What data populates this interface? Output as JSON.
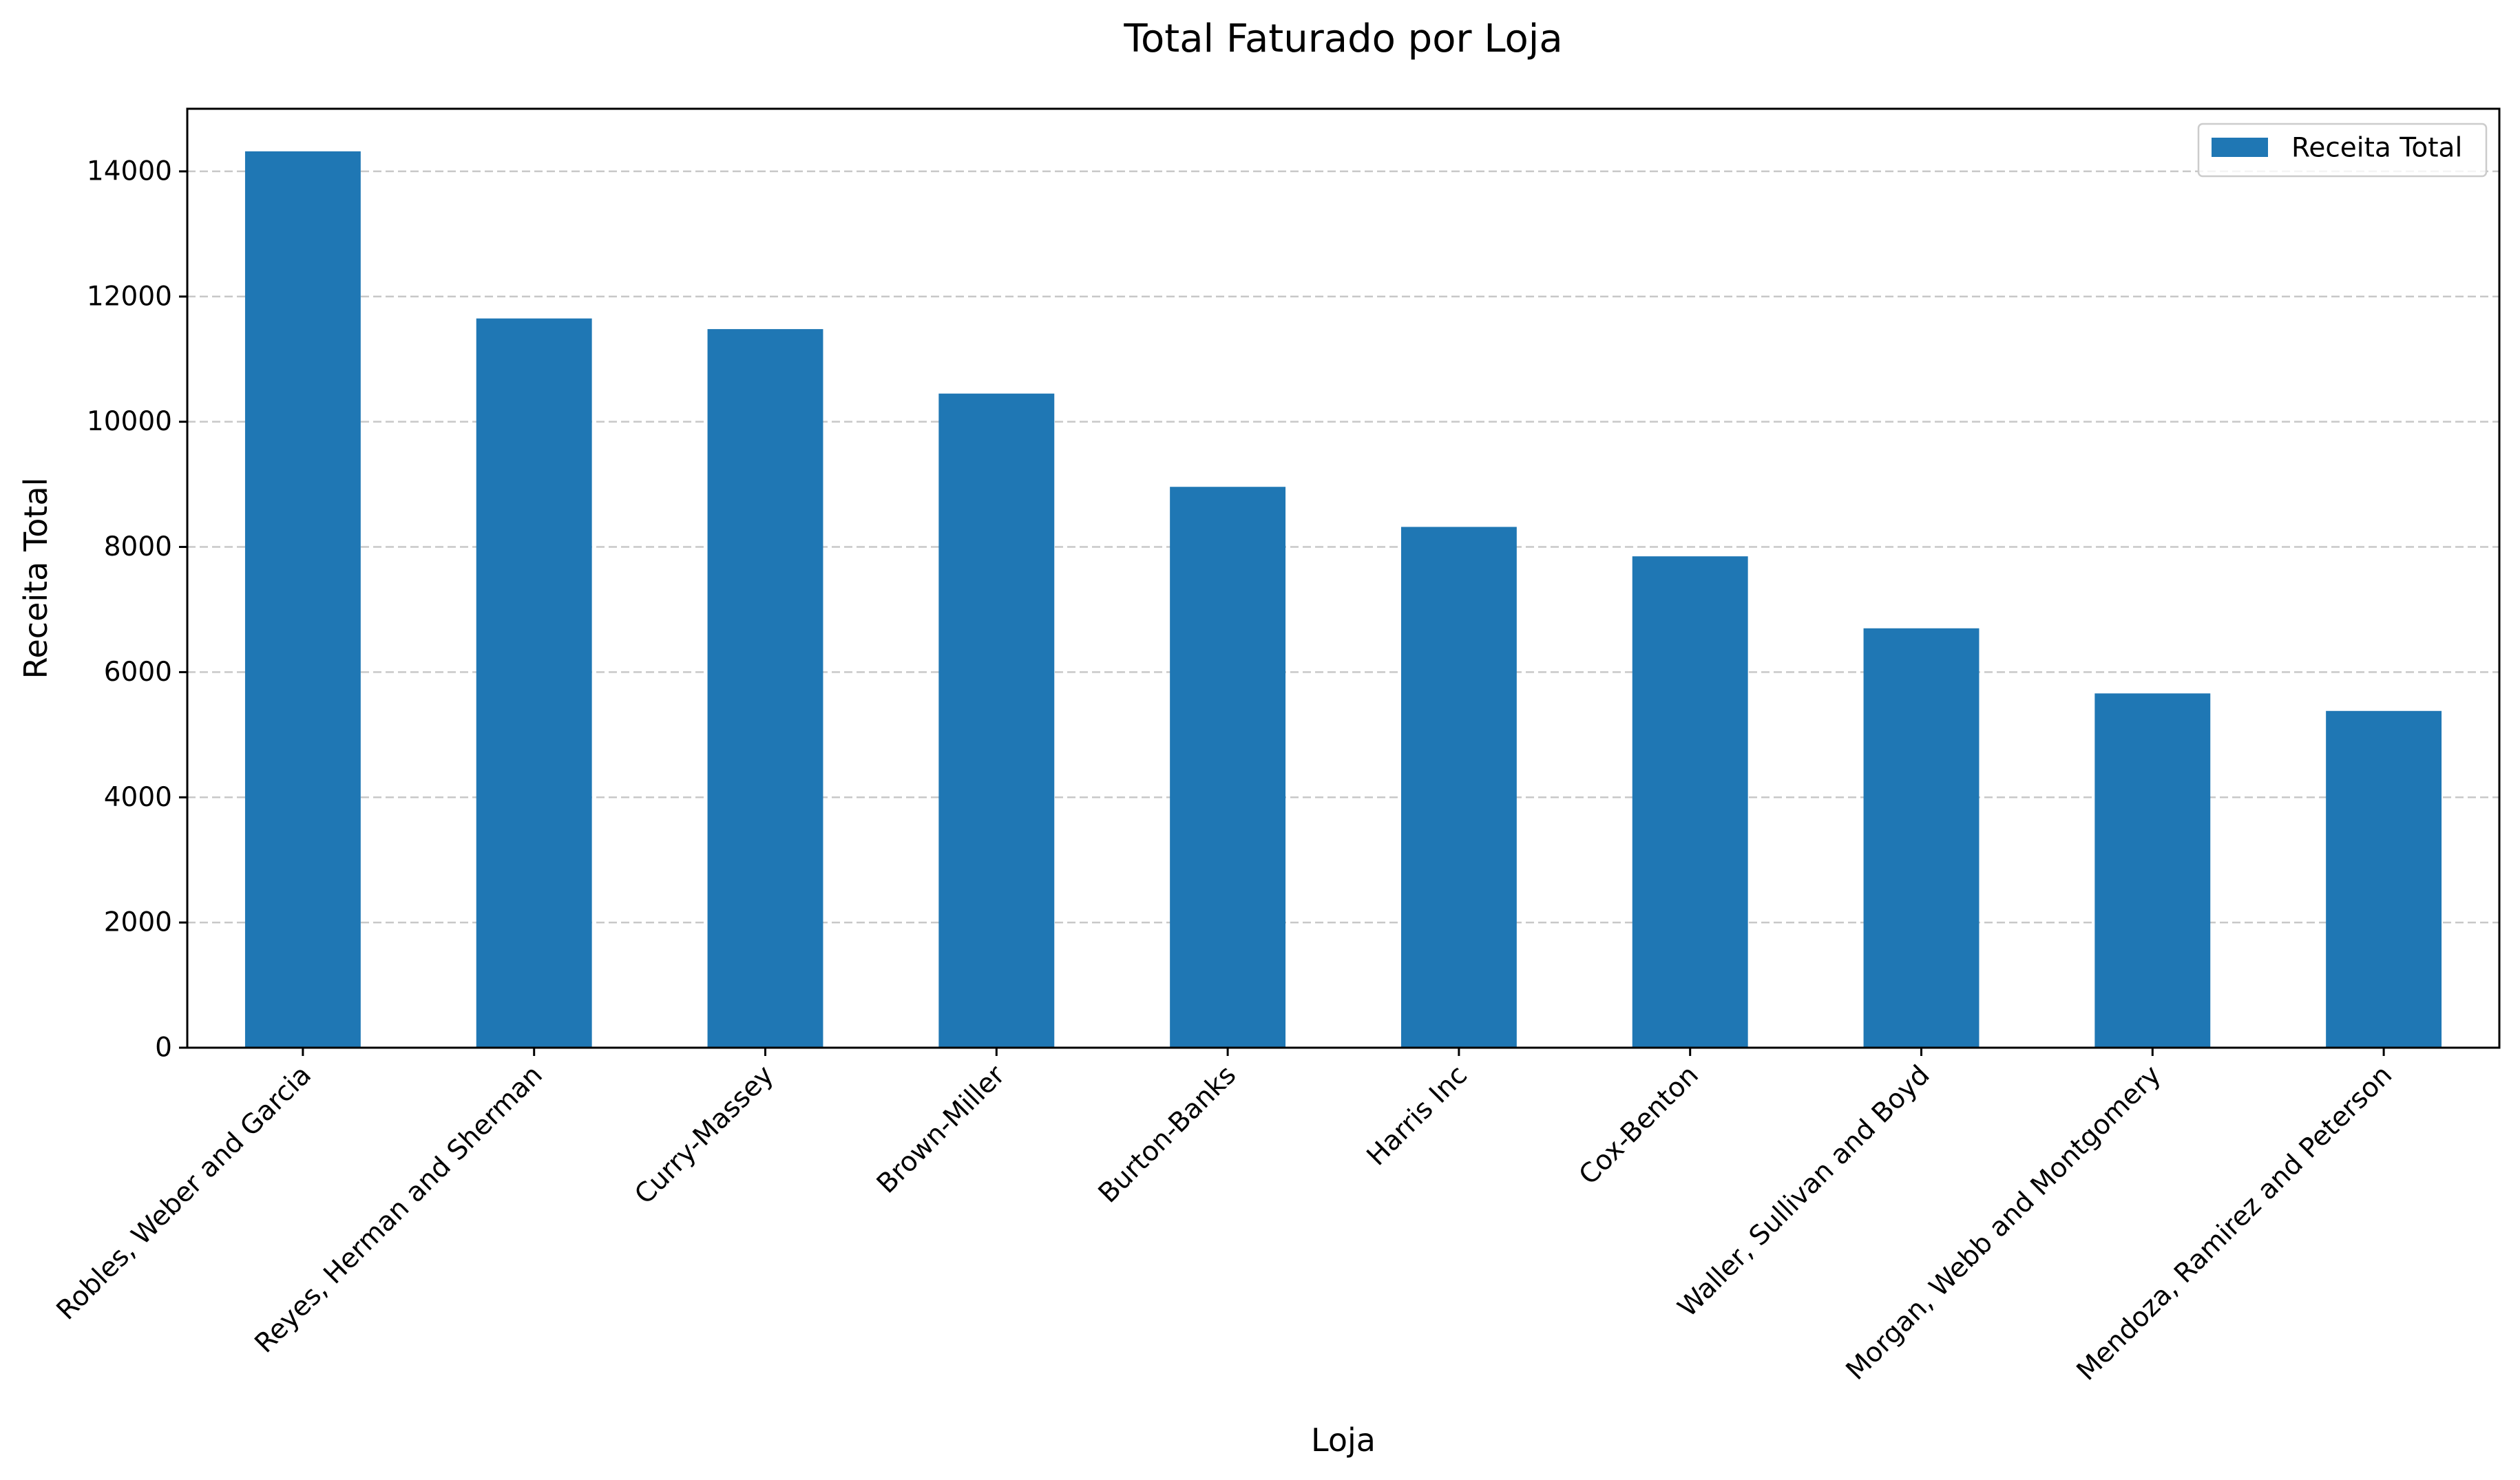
{
  "chart_data": {
    "type": "bar",
    "title": "Total Faturado por Loja",
    "xlabel": "Loja",
    "ylabel": "Receita Total",
    "categories": [
      "Robles, Weber and Garcia",
      "Reyes, Herman and Sherman",
      "Curry-Massey",
      "Brown-Miller",
      "Burton-Banks",
      "Harris Inc",
      "Cox-Benton",
      "Waller, Sullivan and Boyd",
      "Morgan, Webb and Montgomery",
      "Mendoza, Ramirez and Peterson"
    ],
    "series": [
      {
        "name": "Receita Total",
        "values": [
          14320,
          11650,
          11480,
          10450,
          8960,
          8320,
          7850,
          6700,
          5660,
          5380
        ],
        "color": "#1f77b4"
      }
    ],
    "ylim": [
      0,
      15000
    ],
    "yticks": [
      0,
      2000,
      4000,
      6000,
      8000,
      10000,
      12000,
      14000
    ],
    "ytick_labels": [
      "0",
      "2000",
      "4000",
      "6000",
      "8000",
      "10000",
      "12000",
      "14000"
    ],
    "grid": "y-dashed",
    "legend": {
      "position": "top-right",
      "entries": [
        "Receita Total"
      ]
    }
  }
}
